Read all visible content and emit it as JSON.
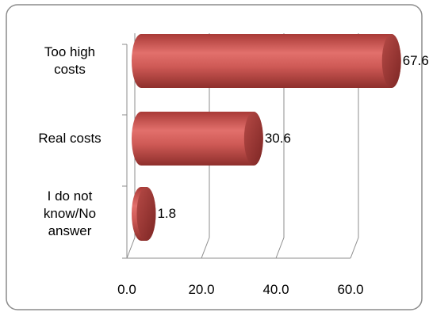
{
  "chart_data": {
    "type": "bar",
    "orientation": "horizontal",
    "title": "",
    "categories": [
      "Too high costs",
      "Real costs",
      "I do not know/No answer"
    ],
    "category_lines": [
      [
        "Too high",
        "costs"
      ],
      [
        "Real costs"
      ],
      [
        "I do not",
        "know/No",
        "answer"
      ]
    ],
    "values": [
      67.6,
      30.6,
      1.8
    ],
    "value_labels": [
      "67.6",
      "30.6",
      "1.8"
    ],
    "xlim": [
      0,
      60
    ],
    "x_ticks": [
      "0.0",
      "20.0",
      "40.0",
      "60.0"
    ],
    "grid": true,
    "legend": "none",
    "bar_color": "#c0504d"
  }
}
